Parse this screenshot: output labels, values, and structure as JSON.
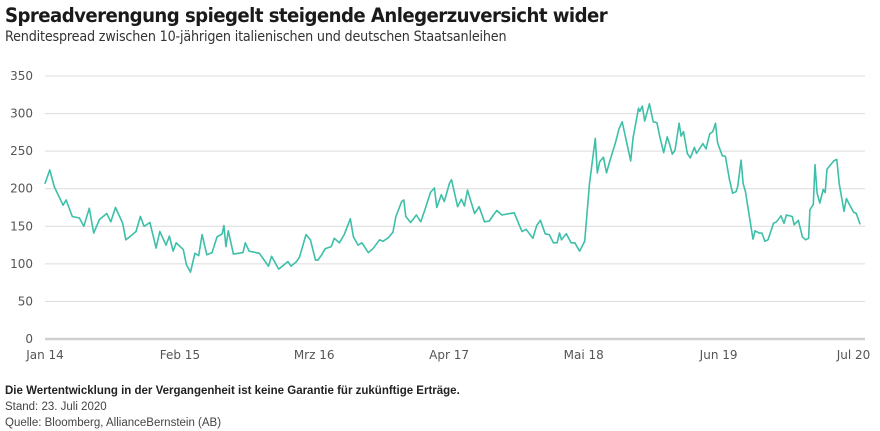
{
  "title": "Spreadverengung spiegelt steigende Anlegerzuversicht wider",
  "subtitle": "Renditespread zwischen 10-jährigen italienischen und deutschen Staatsanleihen",
  "footer": {
    "disclaimer": "Die Wertentwicklung in der Vergangenheit ist keine Garantie für zukünftige Erträge.",
    "date": "Stand: 23. Juli 2020",
    "source": "Quelle: Bloomberg, AllianceBernstein (AB)"
  },
  "chart_data": {
    "type": "line",
    "title": "",
    "xlabel": "",
    "ylabel": "",
    "ylim": [
      0,
      350
    ],
    "yticks": [
      "0",
      "50",
      "100",
      "150",
      "200",
      "250",
      "300",
      "350"
    ],
    "xticks": [
      {
        "date": "2014-01-01",
        "label": "Jan 14"
      },
      {
        "date": "2015-02-01",
        "label": "Feb 15"
      },
      {
        "date": "2016-03-01",
        "label": "Mrz 16"
      },
      {
        "date": "2017-04-01",
        "label": "Apr 17"
      },
      {
        "date": "2018-05-01",
        "label": "Mai 18"
      },
      {
        "date": "2019-06-01",
        "label": "Jun 19"
      },
      {
        "date": "2020-07-01",
        "label": "Jul 20"
      }
    ],
    "xlim": [
      "2014-01-01",
      "2020-07-20"
    ],
    "grid": true,
    "line_color": "#3dbfa8",
    "series": [
      {
        "x": [
          "2014-01-01",
          "2014-01-15",
          "2014-01-28",
          "2014-02-23",
          "2014-03-04",
          "2014-03-22",
          "2014-04-12",
          "2014-04-25",
          "2014-05-11",
          "2014-05-24",
          "2014-06-10",
          "2014-07-01",
          "2014-07-13",
          "2014-07-27",
          "2014-08-17",
          "2014-08-26",
          "2014-09-07",
          "2014-09-25",
          "2014-10-08",
          "2014-10-19",
          "2014-11-05",
          "2014-11-23",
          "2014-12-04",
          "2014-12-22",
          "2015-01-01",
          "2015-01-12",
          "2015-01-21",
          "2015-02-11",
          "2015-02-20",
          "2015-03-04",
          "2015-03-17",
          "2015-03-28",
          "2015-04-07",
          "2015-04-21",
          "2015-05-06",
          "2015-05-21",
          "2015-06-05",
          "2015-06-10",
          "2015-06-16",
          "2015-06-23",
          "2015-07-08",
          "2015-08-05",
          "2015-08-12",
          "2015-08-23",
          "2015-09-22",
          "2015-10-19",
          "2015-10-28",
          "2015-11-18",
          "2015-12-15",
          "2015-12-24",
          "2016-01-09",
          "2016-01-18",
          "2016-02-06",
          "2016-02-19",
          "2016-03-05",
          "2016-03-12",
          "2016-03-23",
          "2016-04-02",
          "2016-04-20",
          "2016-04-29",
          "2016-05-14",
          "2016-05-28",
          "2016-06-15",
          "2016-06-24",
          "2016-07-08",
          "2016-07-19",
          "2016-08-07",
          "2016-08-20",
          "2016-09-09",
          "2016-09-19",
          "2016-10-05",
          "2016-10-18",
          "2016-10-27",
          "2016-11-13",
          "2016-11-19",
          "2016-11-25",
          "2016-12-09",
          "2016-12-26",
          "2017-01-08",
          "2017-01-23",
          "2017-02-05",
          "2017-02-17",
          "2017-02-24",
          "2017-03-09",
          "2017-03-18",
          "2017-04-02",
          "2017-04-08",
          "2017-04-26",
          "2017-05-07",
          "2017-05-16",
          "2017-05-25",
          "2017-06-15",
          "2017-06-28",
          "2017-07-14",
          "2017-07-28",
          "2017-08-09",
          "2017-08-19",
          "2017-09-03",
          "2017-09-26",
          "2017-10-09",
          "2017-10-20",
          "2017-11-01",
          "2017-11-13",
          "2017-12-03",
          "2017-12-14",
          "2017-12-25",
          "2018-01-08",
          "2018-01-20",
          "2018-02-01",
          "2018-02-12",
          "2018-02-19",
          "2018-02-25",
          "2018-03-11",
          "2018-03-25",
          "2018-04-05",
          "2018-04-19",
          "2018-05-04",
          "2018-05-18",
          "2018-06-04",
          "2018-06-10",
          "2018-06-17",
          "2018-06-28",
          "2018-07-07",
          "2018-07-16",
          "2018-08-02",
          "2018-08-13",
          "2018-08-22",
          "2018-09-05",
          "2018-09-16",
          "2018-09-23",
          "2018-10-09",
          "2018-10-13",
          "2018-10-20",
          "2018-10-27",
          "2018-11-10",
          "2018-11-21",
          "2018-12-02",
          "2018-12-11",
          "2018-12-22",
          "2019-01-01",
          "2019-01-07",
          "2019-01-16",
          "2019-01-24",
          "2019-02-05",
          "2019-02-11",
          "2019-02-18",
          "2019-03-01",
          "2019-03-10",
          "2019-03-22",
          "2019-03-28",
          "2019-04-16",
          "2019-04-25",
          "2019-05-06",
          "2019-05-15",
          "2019-05-23",
          "2019-05-29",
          "2019-06-12",
          "2019-06-21",
          "2019-07-03",
          "2019-07-12",
          "2019-07-22",
          "2019-07-27",
          "2019-08-06",
          "2019-08-12",
          "2019-08-19",
          "2019-08-29",
          "2019-09-10",
          "2019-09-16",
          "2019-09-28",
          "2019-10-06",
          "2019-10-15",
          "2019-10-24",
          "2019-11-09",
          "2019-11-18",
          "2019-12-01",
          "2019-12-10",
          "2019-12-17",
          "2020-01-03",
          "2020-01-09",
          "2020-01-21",
          "2020-02-02",
          "2020-02-11",
          "2020-02-20",
          "2020-02-24",
          "2020-03-05",
          "2020-03-10",
          "2020-03-16",
          "2020-03-24",
          "2020-04-03",
          "2020-04-09",
          "2020-04-14",
          "2020-05-04",
          "2020-05-13",
          "2020-05-20",
          "2020-06-03",
          "2020-06-10",
          "2020-06-19",
          "2020-07-01",
          "2020-07-09",
          "2020-07-20"
        ],
        "y": [
          207,
          225,
          203,
          178,
          185,
          163,
          161,
          150,
          174,
          141,
          159,
          167,
          156,
          175,
          154,
          132,
          136,
          143,
          163,
          150,
          155,
          121,
          143,
          125,
          137,
          117,
          128,
          119,
          99,
          89,
          114,
          111,
          139,
          112,
          115,
          136,
          140,
          151,
          123,
          144,
          113,
          115,
          128,
          117,
          114,
          97,
          110,
          93,
          103,
          97,
          103,
          109,
          139,
          132,
          105,
          105,
          112,
          120,
          123,
          134,
          128,
          139,
          160,
          136,
          125,
          128,
          115,
          120,
          132,
          130,
          135,
          142,
          163,
          183,
          185,
          163,
          155,
          165,
          156,
          176,
          195,
          201,
          175,
          192,
          183,
          207,
          212,
          176,
          186,
          177,
          198,
          167,
          176,
          156,
          157,
          165,
          171,
          165,
          167,
          168,
          156,
          143,
          146,
          134,
          151,
          158,
          140,
          139,
          128,
          128,
          141,
          132,
          140,
          128,
          128,
          117,
          130,
          207,
          267,
          221,
          236,
          242,
          221,
          236,
          261,
          280,
          289,
          260,
          237,
          268,
          307,
          303,
          310,
          290,
          313,
          289,
          288,
          268,
          248,
          269,
          261,
          246,
          251,
          287,
          270,
          276,
          247,
          241,
          255,
          247,
          260,
          253,
          273,
          276,
          287,
          261,
          244,
          243,
          212,
          194,
          196,
          203,
          238,
          207,
          196,
          167,
          133,
          144,
          141,
          141,
          130,
          132,
          154,
          156,
          164,
          154,
          165,
          163,
          152,
          158,
          136,
          132,
          134,
          172,
          179,
          232,
          194,
          181,
          199,
          195,
          226,
          237,
          239,
          207,
          170,
          187,
          179,
          169,
          167,
          153
        ]
      }
    ]
  }
}
